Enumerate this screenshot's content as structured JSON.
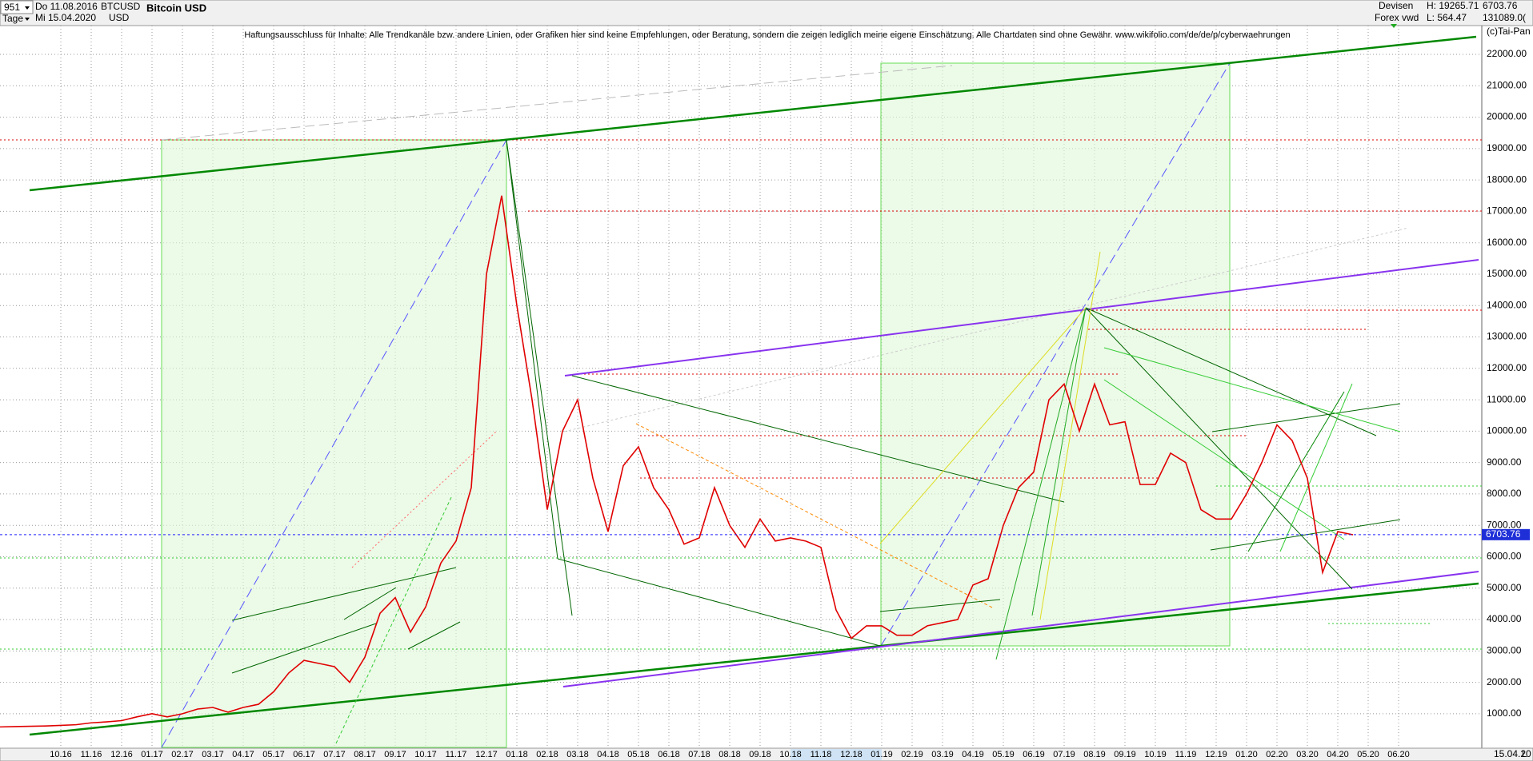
{
  "chart_data": {
    "type": "line",
    "title": "Bitcoin USD",
    "header": {
      "code": "951",
      "period": "Tage",
      "from": "Do 11.08.2016",
      "to": "Mi 15.04.2020",
      "symbol": "BTCUSD",
      "currency": "USD",
      "group": "Devisen",
      "source": "Forex vwd",
      "high": "H: 19265.71",
      "low": "L: 564.47",
      "volume": "131089.0(",
      "copyright": "(c)Tai-Pan",
      "date": "15.04.20",
      "scale": "L"
    },
    "disclaimer": "Haftungsausschluss für Inhalte: Alle Trendkanäle bzw. andere Linien, oder Grafiken hier sind keine Empfehlungen, oder Beratung, sondern die zeigen lediglich meine eigene Einschätzung. Alle Chartdaten sind ohne Gewähr.  www.wikifolio.com/de/de/p/cyberwaehrungen",
    "last": 6703.76,
    "color": "#e00000",
    "categories": [
      null,
      null,
      null,
      null,
      "10.16",
      null,
      "11.16",
      null,
      "12.16",
      null,
      "01.17",
      null,
      "02.17",
      null,
      "03.17",
      null,
      "04.17",
      null,
      "05.17",
      null,
      "06.17",
      null,
      "07.17",
      null,
      "08.17",
      null,
      "09.17",
      null,
      "10.17",
      null,
      "11.17",
      null,
      "12.17",
      null,
      "01.18",
      null,
      "02.18",
      null,
      "03.18",
      null,
      "04.18",
      null,
      "05.18",
      null,
      "06.18",
      null,
      "07.18",
      null,
      "08.18",
      null,
      "09.18",
      null,
      "10.18",
      null,
      "11.18",
      null,
      "12.18",
      null,
      "01.19",
      null,
      "02.19",
      null,
      "03.19",
      null,
      "04.19",
      null,
      "05.19",
      null,
      "06.19",
      null,
      "07.19",
      null,
      "08.19",
      null,
      "09.19",
      null,
      "10.19",
      null,
      "11.19",
      null,
      "12.19",
      null,
      "01.20",
      null,
      "02.20",
      null,
      "03.20",
      null,
      "04.20",
      null,
      "05.20",
      null,
      "06.20",
      null,
      null,
      null
    ],
    "values": [
      580,
      590,
      600,
      610,
      630,
      650,
      710,
      740,
      780,
      900,
      1000,
      900,
      1000,
      1150,
      1200,
      1050,
      1200,
      1300,
      1700,
      2300,
      2700,
      2600,
      2500,
      2000,
      2800,
      4200,
      4700,
      3600,
      4400,
      5800,
      6500,
      8200,
      15000,
      17500,
      14000,
      11000,
      7500,
      10000,
      11000,
      8500,
      6800,
      8900,
      9500,
      8200,
      7500,
      6400,
      6600,
      8200,
      7000,
      6300,
      7200,
      6500,
      6600,
      6500,
      6300,
      4300,
      3400,
      3800,
      3800,
      3500,
      3500,
      3800,
      3900,
      4000,
      5100,
      5300,
      7000,
      8200,
      8700,
      11000,
      11500,
      10000,
      11500,
      10200,
      10300,
      8300,
      8300,
      9300,
      9000,
      7500,
      7200,
      7200,
      8000,
      9000,
      10200,
      9700,
      8500,
      5500,
      6800,
      6700,
      null,
      null,
      null,
      null,
      null,
      null
    ],
    "ylim": [
      -98,
      22917
    ],
    "yticks": [
      {
        "value": 1000,
        "label": "1000.00"
      },
      {
        "value": 2000,
        "label": "2000.00"
      },
      {
        "value": 3000,
        "label": "3000.00"
      },
      {
        "value": 4000,
        "label": "4000.00"
      },
      {
        "value": 5000,
        "label": "5000.00"
      },
      {
        "value": 6000,
        "label": "6000.00"
      },
      {
        "value": 7000,
        "label": "7000.00"
      },
      {
        "value": 8000,
        "label": "8000.00"
      },
      {
        "value": 9000,
        "label": "9000.00"
      },
      {
        "value": 10000,
        "label": "10000.00"
      },
      {
        "value": 11000,
        "label": "11000.00"
      },
      {
        "value": 12000,
        "label": "12000.00"
      },
      {
        "value": 13000,
        "label": "13000.00"
      },
      {
        "value": 14000,
        "label": "14000.00"
      },
      {
        "value": 15000,
        "label": "15000.00"
      },
      {
        "value": 16000,
        "label": "16000.00"
      },
      {
        "value": 17000,
        "label": "17000.00"
      },
      {
        "value": 18000,
        "label": "18000.00"
      },
      {
        "value": 19000,
        "label": "19000.00"
      },
      {
        "value": 20000,
        "label": "20000.00"
      },
      {
        "value": 21000,
        "label": "21000.00"
      },
      {
        "value": 22000,
        "label": "22000.00"
      }
    ],
    "grid": true
  }
}
